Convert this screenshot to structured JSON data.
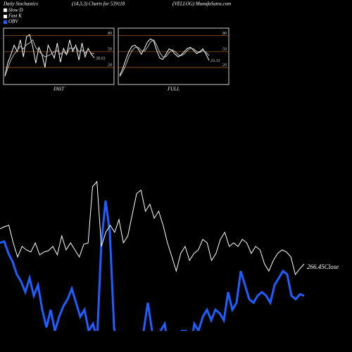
{
  "header": {
    "title": "Daily Stochastics",
    "subtitle": "(14,3,3) Charts for 539118",
    "site": "(VELLOG) MunafaSutra.com"
  },
  "chart_data": [
    {
      "type": "line",
      "title": "FAST",
      "ylim": [
        -12,
        94
      ],
      "yticks": [
        80,
        50,
        20
      ],
      "grid_color": "#b5651d",
      "series": [
        {
          "name": "Fast K",
          "color": "#ffffff",
          "values": [
            5,
            30,
            45,
            62,
            50,
            72,
            40,
            78,
            82,
            60,
            28,
            58,
            44,
            20,
            62,
            50,
            38,
            66,
            30,
            56,
            44,
            72,
            50,
            62,
            34,
            66,
            40,
            56,
            45,
            38.03
          ]
        },
        {
          "name": "Slow D",
          "color": "#bbbbbb",
          "values": [
            3,
            20,
            35,
            45,
            52,
            60,
            55,
            63,
            66,
            72,
            58,
            50,
            45,
            40,
            42,
            45,
            50,
            52,
            45,
            50,
            44,
            57,
            55,
            60,
            50,
            53,
            47,
            54,
            47,
            46
          ]
        }
      ]
    },
    {
      "type": "line",
      "title": "FULL",
      "ylim": [
        -12,
        94
      ],
      "yticks": [
        80,
        50,
        20
      ],
      "grid_color": "#b5651d",
      "series": [
        {
          "color": "#ffffff",
          "values": [
            5,
            18,
            35,
            50,
            60,
            62,
            55,
            45,
            55,
            68,
            74,
            70,
            52,
            38,
            35,
            45,
            55,
            52,
            45,
            40,
            44,
            50,
            56,
            58,
            52,
            46,
            50,
            55,
            45,
            33.33
          ]
        },
        {
          "color": "#bbbbbb",
          "values": [
            3,
            12,
            25,
            40,
            52,
            58,
            58,
            52,
            50,
            58,
            68,
            72,
            62,
            48,
            40,
            40,
            48,
            53,
            50,
            44,
            42,
            46,
            52,
            56,
            55,
            50,
            48,
            52,
            49,
            42
          ]
        }
      ]
    },
    {
      "type": "line",
      "ylim": [
        0,
        500
      ],
      "annotation": "266.45Close",
      "series": [
        {
          "name": "OBV",
          "color": "#1f5fff",
          "values": [
            155,
            157,
            140,
            128,
            110,
            100,
            85,
            105,
            80,
            95,
            60,
            35,
            60,
            30,
            50,
            65,
            75,
            90,
            70,
            50,
            60,
            30,
            40,
            20,
            155,
            215,
            170,
            35,
            0,
            -20,
            -10,
            -20,
            0,
            20,
            30,
            70,
            30,
            0,
            30,
            40,
            0,
            -10,
            0,
            30,
            30,
            0,
            40,
            30,
            50,
            60,
            45,
            60,
            55,
            45,
            85,
            60,
            70,
            115,
            95,
            75,
            70,
            80,
            85,
            80,
            70,
            95,
            105,
            115,
            110,
            80,
            75,
            82,
            80
          ]
        },
        {
          "color": "#ffffff",
          "values": [
            175,
            178,
            180,
            155,
            135,
            150,
            145,
            142,
            155,
            138,
            142,
            144,
            150,
            138,
            165,
            145,
            155,
            145,
            135,
            153,
            155,
            235,
            242,
            150,
            170,
            180,
            170,
            188,
            155,
            165,
            195,
            225,
            230,
            200,
            210,
            190,
            200,
            180,
            155,
            135,
            115,
            140,
            150,
            130,
            140,
            145,
            160,
            155,
            130,
            140,
            160,
            170,
            150,
            155,
            150,
            160,
            155,
            140,
            150,
            145,
            125,
            115,
            130,
            140,
            145,
            142,
            135,
            110,
            118,
            125
          ]
        }
      ]
    }
  ]
}
